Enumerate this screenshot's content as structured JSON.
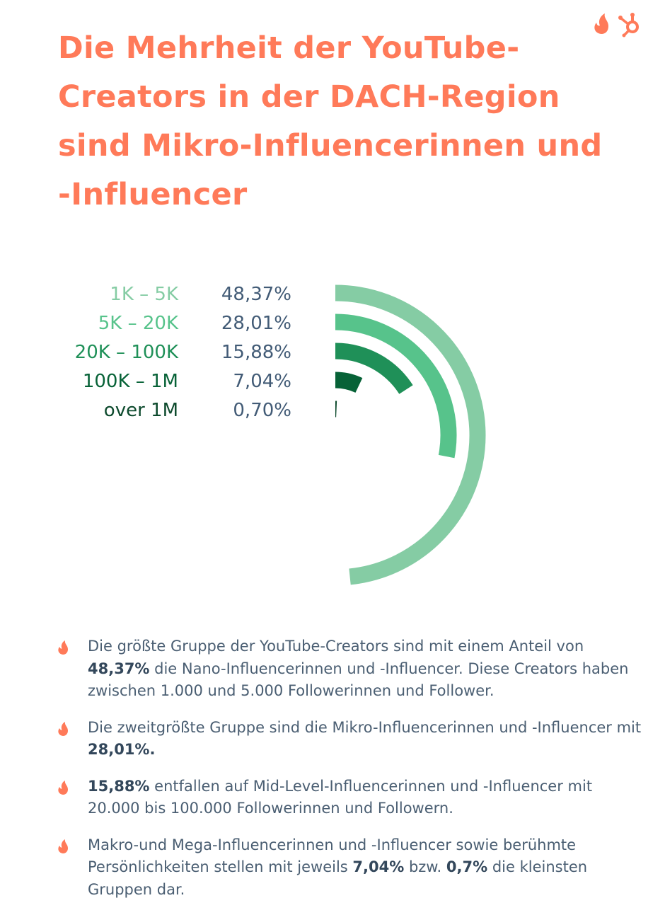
{
  "header": {
    "title": "Die Mehrheit der YouTube-Creators in der DACH-Region sind Mikro-Influencerinnen und -Influencer",
    "logo_icons": [
      "flame-icon",
      "hubspot-sprocket-icon"
    ],
    "accent_color": "#ff7a59"
  },
  "chart_data": {
    "type": "radial-bar",
    "unit": "%",
    "max": 100,
    "series": [
      {
        "label": "1K – 5K",
        "value": 48.37,
        "display": "48,37%",
        "color": "#85cca4"
      },
      {
        "label": "5K – 20K",
        "value": 28.01,
        "display": "28,01%",
        "color": "#57c38b"
      },
      {
        "label": "20K – 100K",
        "value": 15.88,
        "display": "15,88%",
        "color": "#1f9058"
      },
      {
        "label": "100K – 1M",
        "value": 7.04,
        "display": "7,04%",
        "color": "#076237"
      },
      {
        "label": "over 1M",
        "value": 0.7,
        "display": "0,70%",
        "color": "#0d4a2d"
      }
    ]
  },
  "bullets": [
    {
      "icon": "flame-icon",
      "parts": [
        {
          "text": "Die größte Gruppe der YouTube-Creators sind mit einem Anteil von "
        },
        {
          "text": "48,37%",
          "bold": true
        },
        {
          "text": " die Nano-Influencerinnen und -Influencer. Diese Creators haben zwischen 1.000 und 5.000 Followerinnen und Follower."
        }
      ]
    },
    {
      "icon": "flame-icon",
      "parts": [
        {
          "text": "Die zweitgrößte Gruppe sind die Mikro-Influencerinnen und -Influencer mit "
        },
        {
          "text": "28,01%.",
          "bold": true
        }
      ]
    },
    {
      "icon": "flame-icon",
      "parts": [
        {
          "text": "15,88%",
          "bold": true
        },
        {
          "text": " entfallen auf Mid-Level-Influencerinnen und -Influencer mit 20.000 bis 100.000 Followerinnen und Followern."
        }
      ]
    },
    {
      "icon": "flame-icon",
      "parts": [
        {
          "text": "Makro-und Mega-Influencerinnen und -Influencer sowie berühmte Persönlichkeiten stellen mit jeweils "
        },
        {
          "text": "7,04%",
          "bold": true
        },
        {
          "text": " bzw. "
        },
        {
          "text": "0,7%",
          "bold": true
        },
        {
          "text": " die kleinsten Gruppen dar."
        }
      ]
    }
  ]
}
